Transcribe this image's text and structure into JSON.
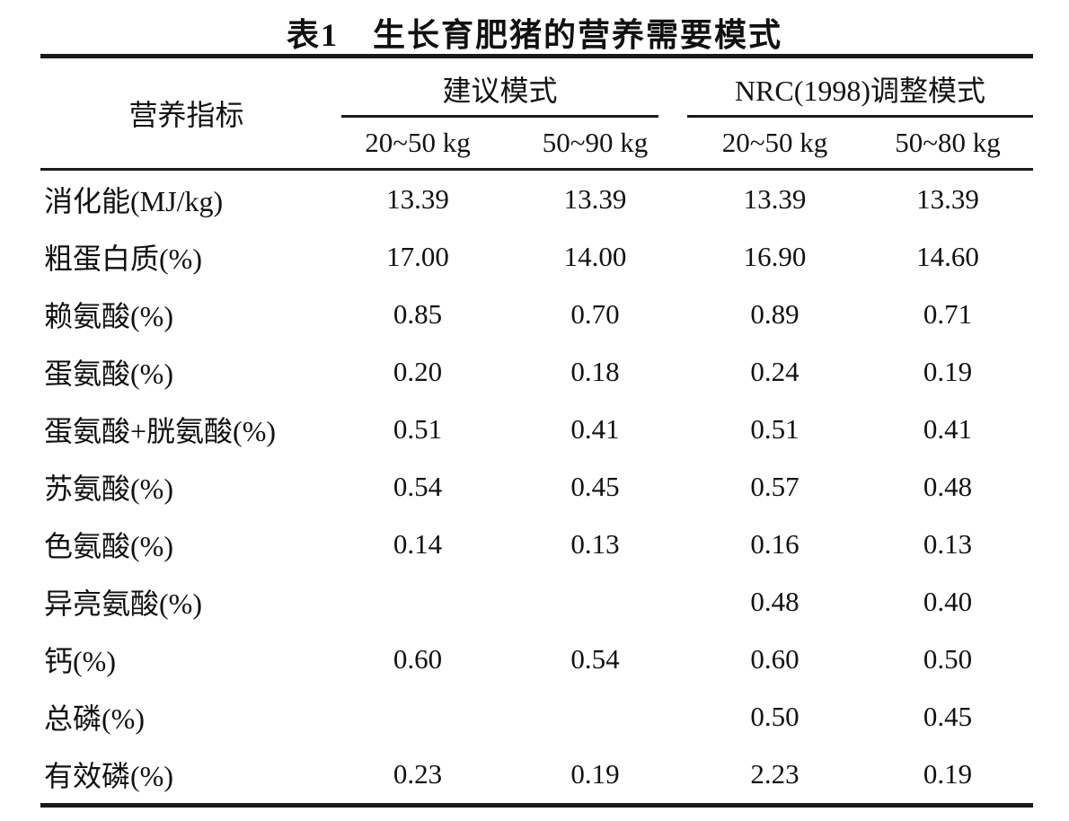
{
  "colors": {
    "text": "#111111",
    "rule": "#1a1a1a",
    "background": "#ffffff"
  },
  "table": {
    "title": "表1　生长育肥猪的营养需要模式",
    "col1_header": "营养指标",
    "groups": [
      {
        "label": "建议模式",
        "sub": [
          "20~50 kg",
          "50~90 kg"
        ]
      },
      {
        "label": "NRC(1998)调整模式",
        "sub": [
          "20~50 kg",
          "50~80 kg"
        ]
      }
    ],
    "rows": [
      {
        "label": "消化能(MJ/kg)",
        "values": [
          "13.39",
          "13.39",
          "13.39",
          "13.39"
        ]
      },
      {
        "label": "粗蛋白质(%)",
        "values": [
          "17.00",
          "14.00",
          "16.90",
          "14.60"
        ]
      },
      {
        "label": "赖氨酸(%)",
        "values": [
          "0.85",
          "0.70",
          "0.89",
          "0.71"
        ]
      },
      {
        "label": "蛋氨酸(%)",
        "values": [
          "0.20",
          "0.18",
          "0.24",
          "0.19"
        ]
      },
      {
        "label": "蛋氨酸+胱氨酸(%)",
        "values": [
          "0.51",
          "0.41",
          "0.51",
          "0.41"
        ]
      },
      {
        "label": "苏氨酸(%)",
        "values": [
          "0.54",
          "0.45",
          "0.57",
          "0.48"
        ]
      },
      {
        "label": "色氨酸(%)",
        "values": [
          "0.14",
          "0.13",
          "0.16",
          "0.13"
        ]
      },
      {
        "label": "异亮氨酸(%)",
        "values": [
          "",
          "",
          "0.48",
          "0.40"
        ]
      },
      {
        "label": "钙(%)",
        "values": [
          "0.60",
          "0.54",
          "0.60",
          "0.50"
        ]
      },
      {
        "label": "总磷(%)",
        "values": [
          "",
          "",
          "0.50",
          "0.45"
        ]
      },
      {
        "label": "有效磷(%)",
        "values": [
          "0.23",
          "0.19",
          "2.23",
          "0.19"
        ]
      }
    ]
  }
}
